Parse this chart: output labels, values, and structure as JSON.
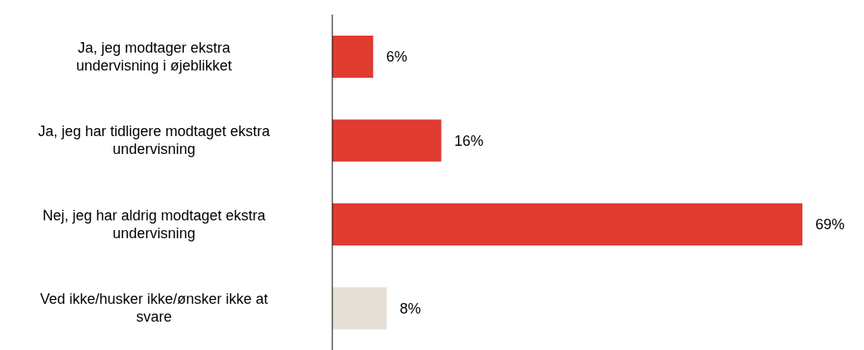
{
  "chart_data": {
    "type": "bar",
    "orientation": "horizontal",
    "categories": [
      "Ja, jeg modtager ekstra\nundervisning i øjeblikket",
      "Ja, jeg har tidligere modtaget ekstra\nundervisning",
      "Nej, jeg har aldrig modtaget ekstra\nundervisning",
      "Ved ikke/husker ikke/ønsker ikke at\nsvare"
    ],
    "values": [
      6,
      16,
      69,
      8
    ],
    "colors": [
      "#e03c31",
      "#e03c31",
      "#e03c31",
      "#e6dfd6"
    ],
    "value_labels": [
      "6%",
      "16%",
      "69%",
      "8%"
    ],
    "grid": false,
    "legend": false
  }
}
